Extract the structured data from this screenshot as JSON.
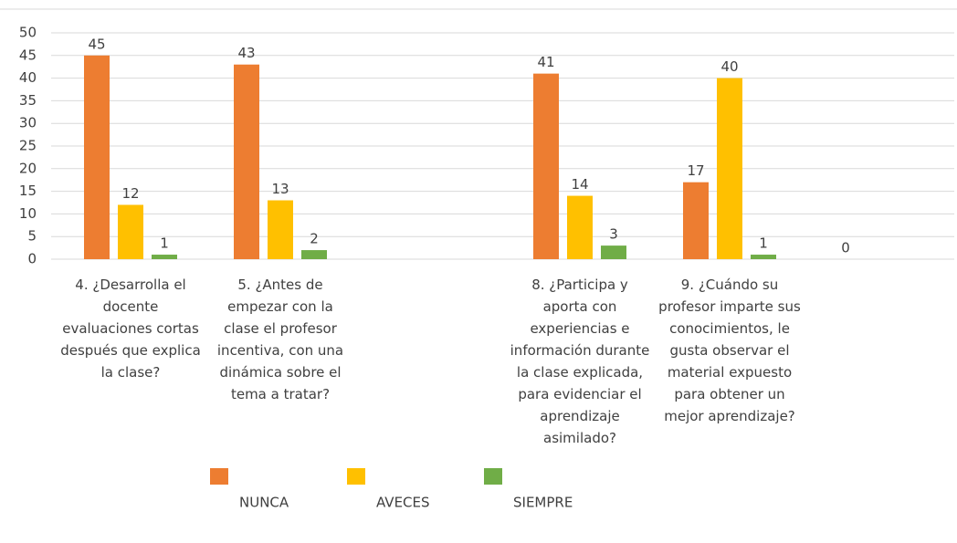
{
  "chart_data": {
    "type": "bar",
    "categories": [
      "4. ¿Desarrolla el docente evaluaciones cortas después que explica la clase?",
      "5. ¿Antes de empezar con la clase el profesor incentiva, con una dinámica sobre el tema a tratar?",
      null,
      "8. ¿Participa y aporta con experiencias e información durante la clase explicada, para evidenciar el aprendizaje asimilado?",
      "9. ¿Cuándo su profesor imparte sus conocimientos, le gusta observar el material expuesto para obtener un mejor aprendizaje?",
      null
    ],
    "series": [
      {
        "name": "NUNCA",
        "color": "#ed7d31",
        "values": [
          45,
          43,
          null,
          41,
          17,
          0
        ]
      },
      {
        "name": "AVECES",
        "color": "#ffc000",
        "values": [
          12,
          13,
          null,
          14,
          40,
          null
        ]
      },
      {
        "name": "SIEMPRE",
        "color": "#70ad47",
        "values": [
          1,
          2,
          null,
          3,
          1,
          null
        ]
      }
    ],
    "ylim": [
      0,
      50
    ],
    "yticks": [
      0,
      5,
      10,
      15,
      20,
      25,
      30,
      35,
      40,
      45,
      50
    ],
    "grid": true,
    "legend": "bottom"
  }
}
